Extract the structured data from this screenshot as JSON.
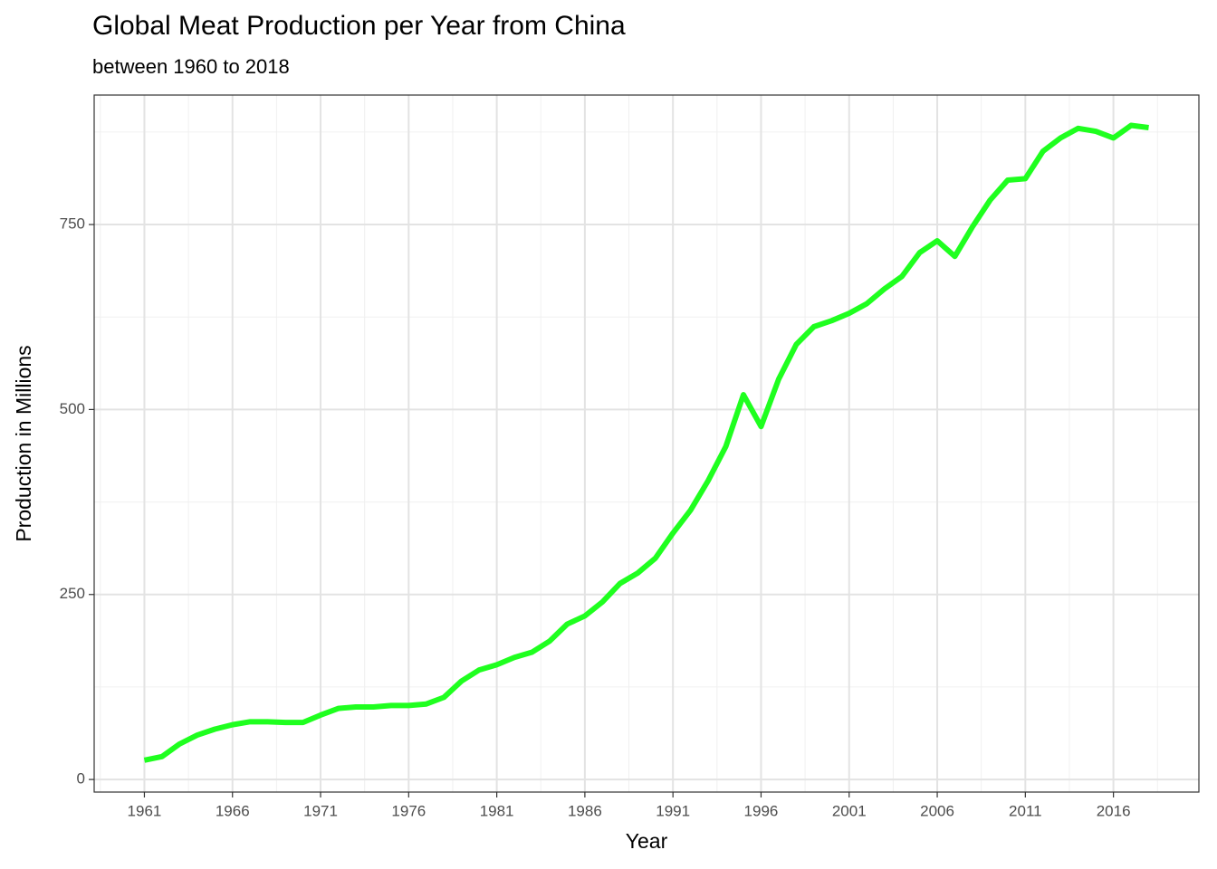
{
  "chart_data": {
    "type": "line",
    "title": "Global Meat Production per Year from China",
    "subtitle": "between 1960 to 2018",
    "x_label": "Year",
    "y_label": "Production in Millions",
    "x": [
      1961,
      1962,
      1963,
      1964,
      1965,
      1966,
      1967,
      1968,
      1969,
      1970,
      1971,
      1972,
      1973,
      1974,
      1975,
      1976,
      1977,
      1978,
      1979,
      1980,
      1981,
      1982,
      1983,
      1984,
      1985,
      1986,
      1987,
      1988,
      1989,
      1990,
      1991,
      1992,
      1993,
      1994,
      1995,
      1996,
      1997,
      1998,
      1999,
      2000,
      2001,
      2002,
      2003,
      2004,
      2005,
      2006,
      2007,
      2008,
      2009,
      2010,
      2011,
      2012,
      2013,
      2014,
      2015,
      2016,
      2017,
      2018
    ],
    "values": [
      26,
      31,
      48,
      60,
      68,
      74,
      78,
      78,
      77,
      77,
      87,
      96,
      98,
      98,
      100,
      100,
      102,
      111,
      133,
      148,
      155,
      165,
      172,
      187,
      210,
      221,
      240,
      265,
      279,
      299,
      333,
      364,
      404,
      450,
      520,
      477,
      541,
      588,
      612,
      620,
      630,
      643,
      663,
      680,
      712,
      728,
      707,
      747,
      783,
      810,
      812,
      849,
      867,
      880,
      876,
      867,
      884,
      881
    ],
    "color": "#1fff1f",
    "xlim": [
      1958.15,
      2020.85
    ],
    "ylim": [
      -17,
      925
    ],
    "xticks": [
      1961,
      1966,
      1971,
      1976,
      1981,
      1986,
      1991,
      1996,
      2001,
      2006,
      2011,
      2016
    ],
    "yticks": [
      0,
      250,
      500,
      750
    ],
    "xminor": [
      1958.5,
      1963.5,
      1968.5,
      1973.5,
      1978.5,
      1983.5,
      1988.5,
      1993.5,
      1998.5,
      2003.5,
      2008.5,
      2013.5,
      2018.5
    ],
    "yminor": [
      125,
      375,
      625,
      875
    ],
    "grid": true
  }
}
